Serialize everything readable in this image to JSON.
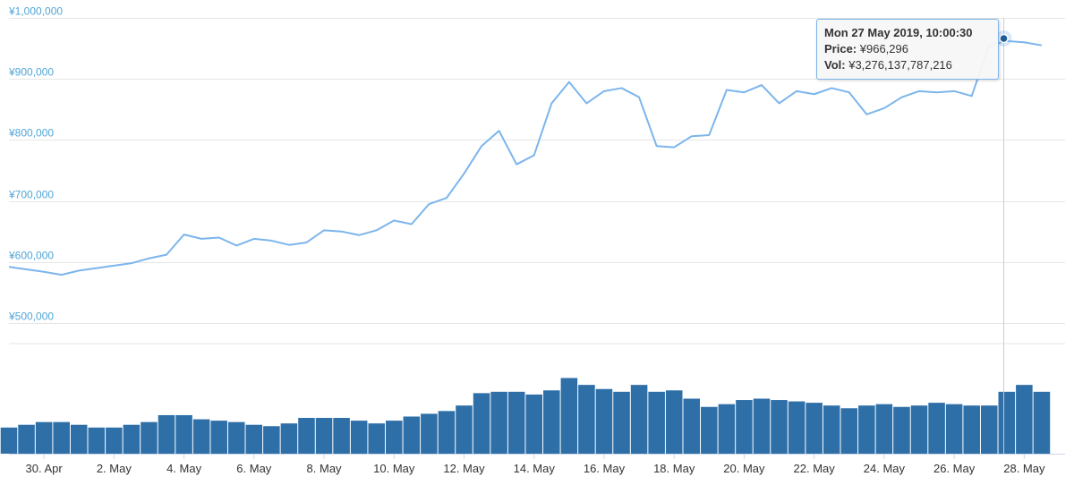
{
  "chart_data": {
    "type": "line",
    "colors": {
      "price_line": "#7cb5ec",
      "volume_bar": "#2f6fa8",
      "axis_label": "#4fa6d8",
      "grid": "#e6e6e6",
      "crosshair": "#cccccc"
    },
    "price": {
      "ylim": [
        500000,
        1000000
      ],
      "yticks": [
        {
          "value": 1000000,
          "label": "¥1,000,000"
        },
        {
          "value": 900000,
          "label": "¥900,000"
        },
        {
          "value": 800000,
          "label": "¥800,000"
        },
        {
          "value": 700000,
          "label": "¥700,000"
        },
        {
          "value": 600000,
          "label": "¥600,000"
        },
        {
          "value": 500000,
          "label": "¥500,000"
        }
      ],
      "grid": true,
      "x": [
        "2019-04-29",
        "2019-04-29 12:00",
        "2019-04-30",
        "2019-04-30 12:00",
        "2019-05-01",
        "2019-05-01 12:00",
        "2019-05-02",
        "2019-05-02 12:00",
        "2019-05-03",
        "2019-05-03 12:00",
        "2019-05-04",
        "2019-05-04 12:00",
        "2019-05-05",
        "2019-05-05 12:00",
        "2019-05-06",
        "2019-05-06 12:00",
        "2019-05-07",
        "2019-05-07 12:00",
        "2019-05-08",
        "2019-05-08 12:00",
        "2019-05-09",
        "2019-05-09 12:00",
        "2019-05-10",
        "2019-05-10 12:00",
        "2019-05-11",
        "2019-05-11 12:00",
        "2019-05-12",
        "2019-05-12 12:00",
        "2019-05-13",
        "2019-05-13 12:00",
        "2019-05-14",
        "2019-05-14 12:00",
        "2019-05-15",
        "2019-05-15 12:00",
        "2019-05-16",
        "2019-05-16 12:00",
        "2019-05-17",
        "2019-05-17 12:00",
        "2019-05-18",
        "2019-05-18 12:00",
        "2019-05-19",
        "2019-05-19 12:00",
        "2019-05-20",
        "2019-05-20 12:00",
        "2019-05-21",
        "2019-05-21 12:00",
        "2019-05-22",
        "2019-05-22 12:00",
        "2019-05-23",
        "2019-05-23 12:00",
        "2019-05-24",
        "2019-05-24 12:00",
        "2019-05-25",
        "2019-05-25 12:00",
        "2019-05-26",
        "2019-05-26 12:00",
        "2019-05-27",
        "2019-05-27 12:00",
        "2019-05-28",
        "2019-05-28 12:00"
      ],
      "values": [
        592000,
        588000,
        584000,
        579000,
        586000,
        590000,
        594000,
        598000,
        606000,
        612000,
        645000,
        638000,
        640000,
        627000,
        638000,
        635000,
        628000,
        632000,
        652000,
        650000,
        644000,
        652000,
        668000,
        662000,
        695000,
        705000,
        745000,
        790000,
        815000,
        760000,
        775000,
        860000,
        895000,
        860000,
        880000,
        885000,
        870000,
        790000,
        788000,
        806000,
        808000,
        882000,
        878000,
        890000,
        860000,
        880000,
        875000,
        885000,
        878000,
        842000,
        852000,
        870000,
        880000,
        878000,
        880000,
        872000,
        955000,
        962000,
        960000,
        955000
      ]
    },
    "volume": {
      "x": [
        "2019-04-29",
        "2019-04-29 12:00",
        "2019-04-30",
        "2019-04-30 12:00",
        "2019-05-01",
        "2019-05-01 12:00",
        "2019-05-02",
        "2019-05-02 12:00",
        "2019-05-03",
        "2019-05-03 12:00",
        "2019-05-04",
        "2019-05-04 12:00",
        "2019-05-05",
        "2019-05-05 12:00",
        "2019-05-06",
        "2019-05-06 12:00",
        "2019-05-07",
        "2019-05-07 12:00",
        "2019-05-08",
        "2019-05-08 12:00",
        "2019-05-09",
        "2019-05-09 12:00",
        "2019-05-10",
        "2019-05-10 12:00",
        "2019-05-11",
        "2019-05-11 12:00",
        "2019-05-12",
        "2019-05-12 12:00",
        "2019-05-13",
        "2019-05-13 12:00",
        "2019-05-14",
        "2019-05-14 12:00",
        "2019-05-15",
        "2019-05-15 12:00",
        "2019-05-16",
        "2019-05-16 12:00",
        "2019-05-17",
        "2019-05-17 12:00",
        "2019-05-18",
        "2019-05-18 12:00",
        "2019-05-19",
        "2019-05-19 12:00",
        "2019-05-20",
        "2019-05-20 12:00",
        "2019-05-21",
        "2019-05-21 12:00",
        "2019-05-22",
        "2019-05-22 12:00",
        "2019-05-23",
        "2019-05-23 12:00",
        "2019-05-24",
        "2019-05-24 12:00",
        "2019-05-25",
        "2019-05-25 12:00",
        "2019-05-26",
        "2019-05-26 12:00",
        "2019-05-27",
        "2019-05-27 12:00",
        "2019-05-28",
        "2019-05-28 12:00"
      ],
      "values": [
        1.9,
        2.1,
        2.3,
        2.3,
        2.1,
        1.9,
        1.9,
        2.1,
        2.3,
        2.8,
        2.8,
        2.5,
        2.4,
        2.3,
        2.1,
        2.0,
        2.2,
        2.6,
        2.6,
        2.6,
        2.4,
        2.2,
        2.4,
        2.7,
        2.9,
        3.1,
        3.5,
        4.4,
        4.5,
        4.5,
        4.3,
        4.6,
        5.5,
        5.0,
        4.7,
        4.5,
        5.0,
        4.5,
        4.6,
        4.0,
        3.4,
        3.6,
        3.9,
        4.0,
        3.9,
        3.8,
        3.7,
        3.5,
        3.3,
        3.5,
        3.6,
        3.4,
        3.5,
        3.7,
        3.6,
        3.5,
        3.5,
        4.5,
        5.0,
        4.5
      ],
      "ylim": [
        0,
        8
      ]
    },
    "x_labels": [
      {
        "x": "2019-04-30",
        "label": "30. Apr"
      },
      {
        "x": "2019-05-02",
        "label": "2. May"
      },
      {
        "x": "2019-05-04",
        "label": "4. May"
      },
      {
        "x": "2019-05-06",
        "label": "6. May"
      },
      {
        "x": "2019-05-08",
        "label": "8. May"
      },
      {
        "x": "2019-05-10",
        "label": "10. May"
      },
      {
        "x": "2019-05-12",
        "label": "12. May"
      },
      {
        "x": "2019-05-14",
        "label": "14. May"
      },
      {
        "x": "2019-05-16",
        "label": "16. May"
      },
      {
        "x": "2019-05-18",
        "label": "18. May"
      },
      {
        "x": "2019-05-20",
        "label": "20. May"
      },
      {
        "x": "2019-05-22",
        "label": "22. May"
      },
      {
        "x": "2019-05-24",
        "label": "24. May"
      },
      {
        "x": "2019-05-26",
        "label": "26. May"
      },
      {
        "x": "2019-05-28",
        "label": "28. May"
      }
    ],
    "tooltip": {
      "x": "2019-05-27 10:00:30",
      "value": 966296,
      "date": "Mon 27 May 2019, 10:00:30",
      "price_label": "Price:",
      "price_value": "¥966,296",
      "vol_label": "Vol:",
      "vol_value": "¥3,276,137,787,216"
    }
  }
}
